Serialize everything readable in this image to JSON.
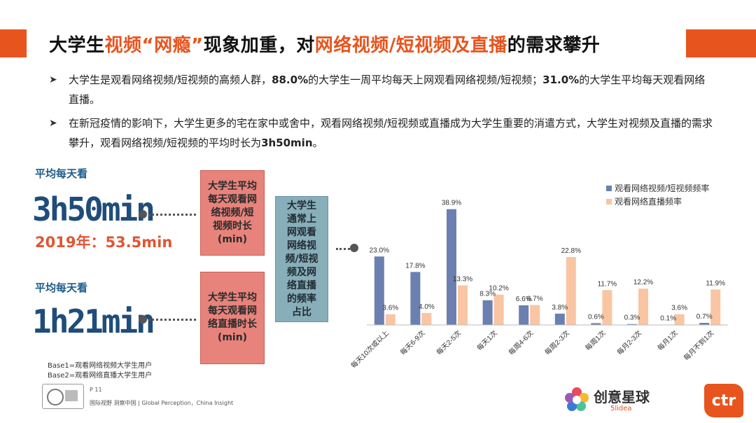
{
  "title": {
    "part1": "大学生",
    "part2": "视频“网瘾”",
    "part3": "现象加重，对",
    "part4": "网络视频/短视频及直播",
    "part5": "的需求攀升"
  },
  "bullets": [
    {
      "a": "大学生是观看网络视频/短视频的高频人群，",
      "b": "88.0%",
      "c": "的大学生一周平均每天上网观看网络视频/短视频；",
      "d": "31.0%",
      "e": "的大学生平均每天观看网络直播。"
    },
    {
      "a": "在新冠疫情的影响下，大学生更多的宅在家中或舍中，观看网络视频/短视频或直播成为大学生重要的消遣方式，大学生对视频及直播的需求攀升，观看网络视频/短视频的平均时长为",
      "b": "3h50min",
      "c": "。"
    }
  ],
  "stats": {
    "label1": "平均每天看",
    "time1": "3h50min",
    "prev1": "2019年：53.5min",
    "label2": "平均每天看",
    "time2": "1h21min"
  },
  "boxes": {
    "red1": "大学生平均每天观看网络视频/短视频时长(min)",
    "red2": "大学生平均每天观看网络直播时长(min)",
    "teal": "大学生通常上网观看网络视频/短视频及网络直播的频率占比"
  },
  "footer": {
    "base1": "Base1=观看网络视频大学生用户",
    "base2": "Base2=观看网络直播大学生用户",
    "page": "P 11",
    "slogan": "国际视野 洞察中国 | Global Perception，China Insight",
    "brand_cn": "创意星球",
    "brand_en": "5lidea",
    "logo_ctr": "ctr"
  },
  "colors": {
    "accent": "#e8541e",
    "series1": "#6b7fb0",
    "series2": "#f9c5a3"
  },
  "chart_data": {
    "type": "bar",
    "categories": [
      "每天10次或以上",
      "每天6-9次",
      "每天2-5次",
      "每天1次",
      "每周4-6次",
      "每周2-3次",
      "每周1次",
      "每月2-3次",
      "每月1次",
      "每月不到1次"
    ],
    "series": [
      {
        "name": "观看网络视频/短视频频率",
        "values": [
          23.0,
          17.8,
          38.9,
          8.3,
          6.6,
          3.8,
          0.6,
          0.3,
          0.1,
          0.7
        ],
        "labels": [
          "23.0%",
          "17.8%",
          "38.9%",
          "8.3%",
          "6.6%",
          "3.8%",
          "0.6%",
          "0.3%",
          "0.1%",
          "0.7%"
        ]
      },
      {
        "name": "观看网络直播频率",
        "values": [
          3.6,
          4.0,
          13.3,
          10.2,
          6.7,
          22.8,
          11.7,
          12.2,
          3.6,
          11.9
        ],
        "labels": [
          "3.6%",
          "4.0%",
          "13.3%",
          "10.2%",
          "6.7%",
          "22.8%",
          "11.7%",
          "12.2%",
          "3.6%",
          "11.9%"
        ]
      }
    ],
    "ylim": [
      0,
      40
    ],
    "legend": "top-right",
    "grid": false
  }
}
